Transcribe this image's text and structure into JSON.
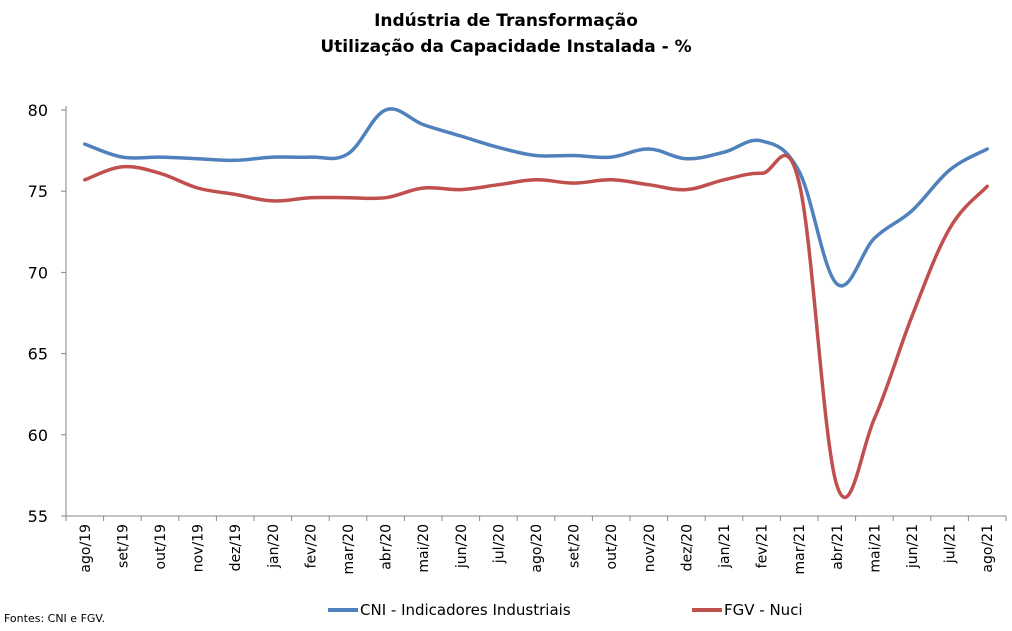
{
  "chart_data": {
    "type": "line",
    "title": "Indústria de Transformação",
    "subtitle": "Utilização da Capacidade Instalada - %",
    "categories": [
      "ago/19",
      "set/19",
      "out/19",
      "nov/19",
      "dez/19",
      "jan/20",
      "fev/20",
      "mar/20",
      "abr/20",
      "mai/20",
      "jun/20",
      "jul/20",
      "ago/20",
      "set/20",
      "out/20",
      "nov/20",
      "dez/20",
      "jan/21",
      "fev/21",
      "mar/21",
      "abr/21",
      "mai/21",
      "jun/21",
      "jul/21",
      "ago/21"
    ],
    "series": [
      {
        "name": "CNI - Indicadores Industriais",
        "color": "#4f81bd",
        "values": [
          77.9,
          77.1,
          77.1,
          77.0,
          76.9,
          77.1,
          77.1,
          77.3,
          80.0,
          79.1,
          78.4,
          77.7,
          77.2,
          77.2,
          77.1,
          77.6,
          77.0,
          77.4,
          78.1,
          76.2,
          69.3,
          72.1,
          73.8,
          76.3,
          77.6
        ]
      },
      {
        "name": "FGV - Nuci",
        "color": "#c0504d",
        "values": [
          75.7,
          76.5,
          76.1,
          75.2,
          74.8,
          74.4,
          74.6,
          74.6,
          74.6,
          75.2,
          75.1,
          75.4,
          75.7,
          75.5,
          75.7,
          75.4,
          75.1,
          75.7,
          76.1,
          75.5,
          56.9,
          61.0,
          67.3,
          72.7,
          75.3
        ]
      }
    ],
    "yticks": [
      "55",
      "60",
      "65",
      "70",
      "75",
      "80"
    ],
    "ylim": [
      55,
      80
    ],
    "grid": false,
    "legend_position": "bottom"
  },
  "source": "Fontes: CNI e FGV."
}
